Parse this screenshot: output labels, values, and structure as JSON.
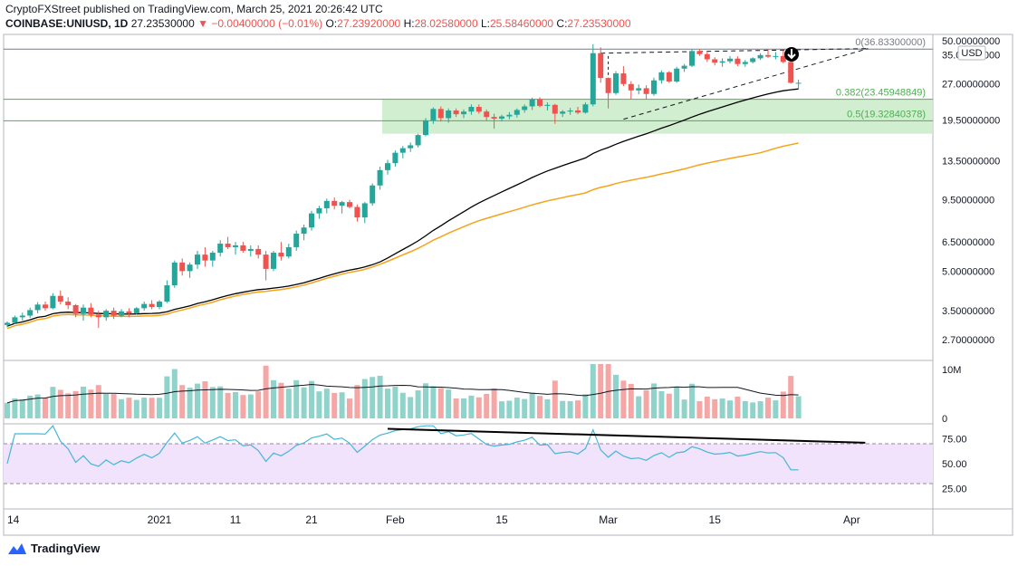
{
  "header": {
    "publisher_line": "CryptoFXStreet published on TradingView.com, March 25, 2021 20:26:42 UTC",
    "symbol": "COINBASE:UNIUSD, 1D",
    "last": "27.23530000",
    "change": "−0.00400000 (−0.01%)",
    "o_label": "O:",
    "o_value": "27.23920000",
    "h_label": "H:",
    "h_value": "28.02580000",
    "l_label": "L:",
    "l_value": "25.58460000",
    "c_label": "C:",
    "c_value": "27.23530000"
  },
  "footer": {
    "brand": "TradingView"
  },
  "colors": {
    "up": "#26a69a",
    "down": "#ef5350",
    "sma50": "#000000",
    "sma100": "#f7a21b",
    "fib_zone": "#cdeccb",
    "rsi_line": "#45b6d8",
    "rsi_band": "#f1e3fb",
    "vol_up": "#8fd3cb",
    "vol_down": "#f5a7a6"
  },
  "chart_data": {
    "type": "candlestick",
    "currency": "USD",
    "y_scale": "log",
    "price_axis_labels": [
      "50.00000000",
      "35.00000000",
      "27.00000000",
      "19.50000000",
      "13.50000000",
      "9.50000000",
      "6.50000000",
      "5.00000000",
      "3.50000000",
      "2.70000000"
    ],
    "x_axis_labels": [
      "14",
      "2021",
      "11",
      "21",
      "Feb",
      "15",
      "Mar",
      "15",
      "Apr"
    ],
    "ohlc": [
      [
        3.08,
        3.18,
        3.02,
        3.14
      ],
      [
        3.14,
        3.35,
        3.1,
        3.3
      ],
      [
        3.3,
        3.44,
        3.2,
        3.35
      ],
      [
        3.35,
        3.6,
        3.28,
        3.52
      ],
      [
        3.52,
        3.78,
        3.42,
        3.7
      ],
      [
        3.7,
        3.8,
        3.5,
        3.58
      ],
      [
        3.58,
        4.1,
        3.55,
        4.0
      ],
      [
        4.0,
        4.2,
        3.7,
        3.8
      ],
      [
        3.8,
        3.95,
        3.55,
        3.68
      ],
      [
        3.68,
        3.72,
        3.3,
        3.4
      ],
      [
        3.4,
        3.7,
        3.2,
        3.6
      ],
      [
        3.6,
        3.75,
        3.3,
        3.38
      ],
      [
        3.38,
        3.5,
        3.0,
        3.3
      ],
      [
        3.3,
        3.55,
        3.2,
        3.5
      ],
      [
        3.5,
        3.6,
        3.25,
        3.35
      ],
      [
        3.35,
        3.55,
        3.3,
        3.48
      ],
      [
        3.48,
        3.58,
        3.3,
        3.42
      ],
      [
        3.42,
        3.62,
        3.38,
        3.58
      ],
      [
        3.58,
        3.8,
        3.5,
        3.72
      ],
      [
        3.72,
        3.85,
        3.55,
        3.62
      ],
      [
        3.62,
        3.85,
        3.55,
        3.8
      ],
      [
        3.8,
        4.6,
        3.75,
        4.4
      ],
      [
        4.4,
        5.5,
        4.3,
        5.4
      ],
      [
        5.4,
        5.6,
        4.8,
        5.0
      ],
      [
        5.0,
        5.4,
        4.7,
        5.3
      ],
      [
        5.3,
        6.0,
        5.1,
        5.8
      ],
      [
        5.8,
        6.2,
        5.2,
        5.5
      ],
      [
        5.5,
        6.0,
        5.2,
        5.9
      ],
      [
        5.9,
        6.6,
        5.7,
        6.4
      ],
      [
        6.4,
        6.8,
        6.1,
        6.2
      ],
      [
        6.2,
        6.5,
        5.8,
        6.3
      ],
      [
        6.3,
        6.5,
        5.9,
        6.0
      ],
      [
        6.0,
        6.3,
        5.7,
        6.1
      ],
      [
        6.1,
        6.3,
        5.6,
        5.8
      ],
      [
        5.8,
        6.0,
        4.6,
        5.1
      ],
      [
        5.1,
        6.0,
        5.0,
        5.9
      ],
      [
        5.9,
        6.5,
        5.5,
        5.7
      ],
      [
        5.7,
        6.4,
        5.6,
        6.2
      ],
      [
        6.2,
        7.2,
        6.0,
        7.0
      ],
      [
        7.0,
        7.6,
        6.6,
        7.4
      ],
      [
        7.4,
        8.6,
        7.2,
        8.4
      ],
      [
        8.4,
        9.0,
        8.0,
        8.8
      ],
      [
        8.8,
        9.6,
        8.4,
        9.4
      ],
      [
        9.4,
        9.7,
        8.7,
        9.0
      ],
      [
        9.0,
        9.4,
        8.4,
        9.3
      ],
      [
        9.3,
        9.5,
        8.8,
        8.9
      ],
      [
        8.9,
        9.1,
        7.8,
        8.1
      ],
      [
        8.1,
        9.3,
        7.7,
        9.2
      ],
      [
        9.2,
        11.0,
        9.0,
        10.8
      ],
      [
        10.8,
        12.8,
        10.4,
        12.4
      ],
      [
        12.4,
        13.6,
        11.9,
        13.2
      ],
      [
        13.2,
        14.8,
        12.8,
        14.5
      ],
      [
        14.5,
        15.4,
        13.8,
        15.1
      ],
      [
        15.1,
        15.9,
        14.6,
        15.5
      ],
      [
        15.5,
        17.2,
        15.2,
        17.0
      ],
      [
        17.0,
        19.8,
        16.8,
        19.4
      ],
      [
        19.4,
        21.8,
        18.8,
        21.5
      ],
      [
        21.5,
        22.0,
        19.2,
        19.8
      ],
      [
        19.8,
        21.6,
        19.0,
        21.2
      ],
      [
        21.2,
        21.6,
        20.0,
        20.5
      ],
      [
        20.5,
        21.4,
        19.8,
        21.0
      ],
      [
        21.0,
        22.4,
        20.4,
        21.9
      ],
      [
        21.9,
        22.4,
        20.6,
        21.0
      ],
      [
        21.0,
        21.4,
        19.3,
        20.0
      ],
      [
        20.0,
        20.6,
        18.0,
        19.7
      ],
      [
        19.7,
        20.4,
        19.2,
        20.1
      ],
      [
        20.1,
        20.9,
        19.6,
        20.4
      ],
      [
        20.4,
        21.6,
        19.9,
        21.3
      ],
      [
        21.3,
        22.4,
        20.8,
        22.0
      ],
      [
        22.0,
        23.8,
        21.3,
        23.4
      ],
      [
        23.4,
        23.9,
        21.8,
        22.1
      ],
      [
        22.1,
        22.8,
        21.2,
        22.3
      ],
      [
        22.3,
        22.5,
        18.8,
        20.6
      ],
      [
        20.6,
        21.3,
        20.0,
        21.0
      ],
      [
        21.0,
        21.7,
        20.4,
        21.2
      ],
      [
        21.2,
        21.9,
        20.5,
        20.8
      ],
      [
        20.8,
        22.8,
        20.6,
        22.4
      ],
      [
        22.4,
        38.5,
        22.0,
        35.5
      ],
      [
        35.5,
        37.4,
        27.2,
        28.4
      ],
      [
        28.4,
        28.5,
        21.6,
        24.8
      ],
      [
        24.8,
        30.2,
        24.4,
        29.6
      ],
      [
        29.6,
        31.6,
        26.4,
        26.9
      ],
      [
        26.9,
        27.6,
        23.5,
        25.4
      ],
      [
        25.4,
        26.8,
        24.5,
        25.9
      ],
      [
        25.9,
        26.6,
        23.5,
        24.6
      ],
      [
        24.6,
        28.5,
        24.2,
        27.8
      ],
      [
        27.8,
        30.4,
        27.0,
        29.9
      ],
      [
        29.9,
        30.2,
        27.2,
        27.5
      ],
      [
        27.5,
        31.4,
        27.2,
        30.9
      ],
      [
        30.9,
        32.2,
        30.0,
        31.7
      ],
      [
        31.7,
        36.8,
        31.3,
        36.2
      ],
      [
        36.2,
        36.8,
        34.6,
        35.2
      ],
      [
        35.2,
        35.8,
        32.8,
        33.6
      ],
      [
        33.6,
        34.2,
        31.8,
        32.6
      ],
      [
        32.6,
        33.9,
        31.4,
        33.0
      ],
      [
        33.0,
        34.6,
        32.4,
        33.8
      ],
      [
        33.8,
        34.5,
        31.6,
        32.2
      ],
      [
        32.2,
        33.4,
        31.4,
        32.8
      ],
      [
        32.8,
        34.2,
        32.4,
        33.9
      ],
      [
        33.9,
        35.5,
        33.4,
        34.9
      ],
      [
        34.9,
        36.9,
        34.0,
        34.4
      ],
      [
        34.4,
        35.9,
        33.6,
        34.6
      ],
      [
        34.6,
        36.4,
        32.4,
        32.8
      ],
      [
        32.8,
        33.2,
        27.0,
        27.2
      ],
      [
        27.2,
        28.0,
        25.6,
        27.2
      ]
    ],
    "fibonacci": [
      {
        "label": "0(36.83300000)",
        "price": 36.833
      },
      {
        "label": "0.382(23.45948849)",
        "price": 23.45948849
      },
      {
        "label": "0.5(19.32840378)",
        "price": 19.32840378
      }
    ],
    "volume_axis_labels": [
      "10M",
      "0"
    ],
    "rsi_axis_labels": [
      "75.00",
      "50.00",
      "25.00"
    ]
  }
}
